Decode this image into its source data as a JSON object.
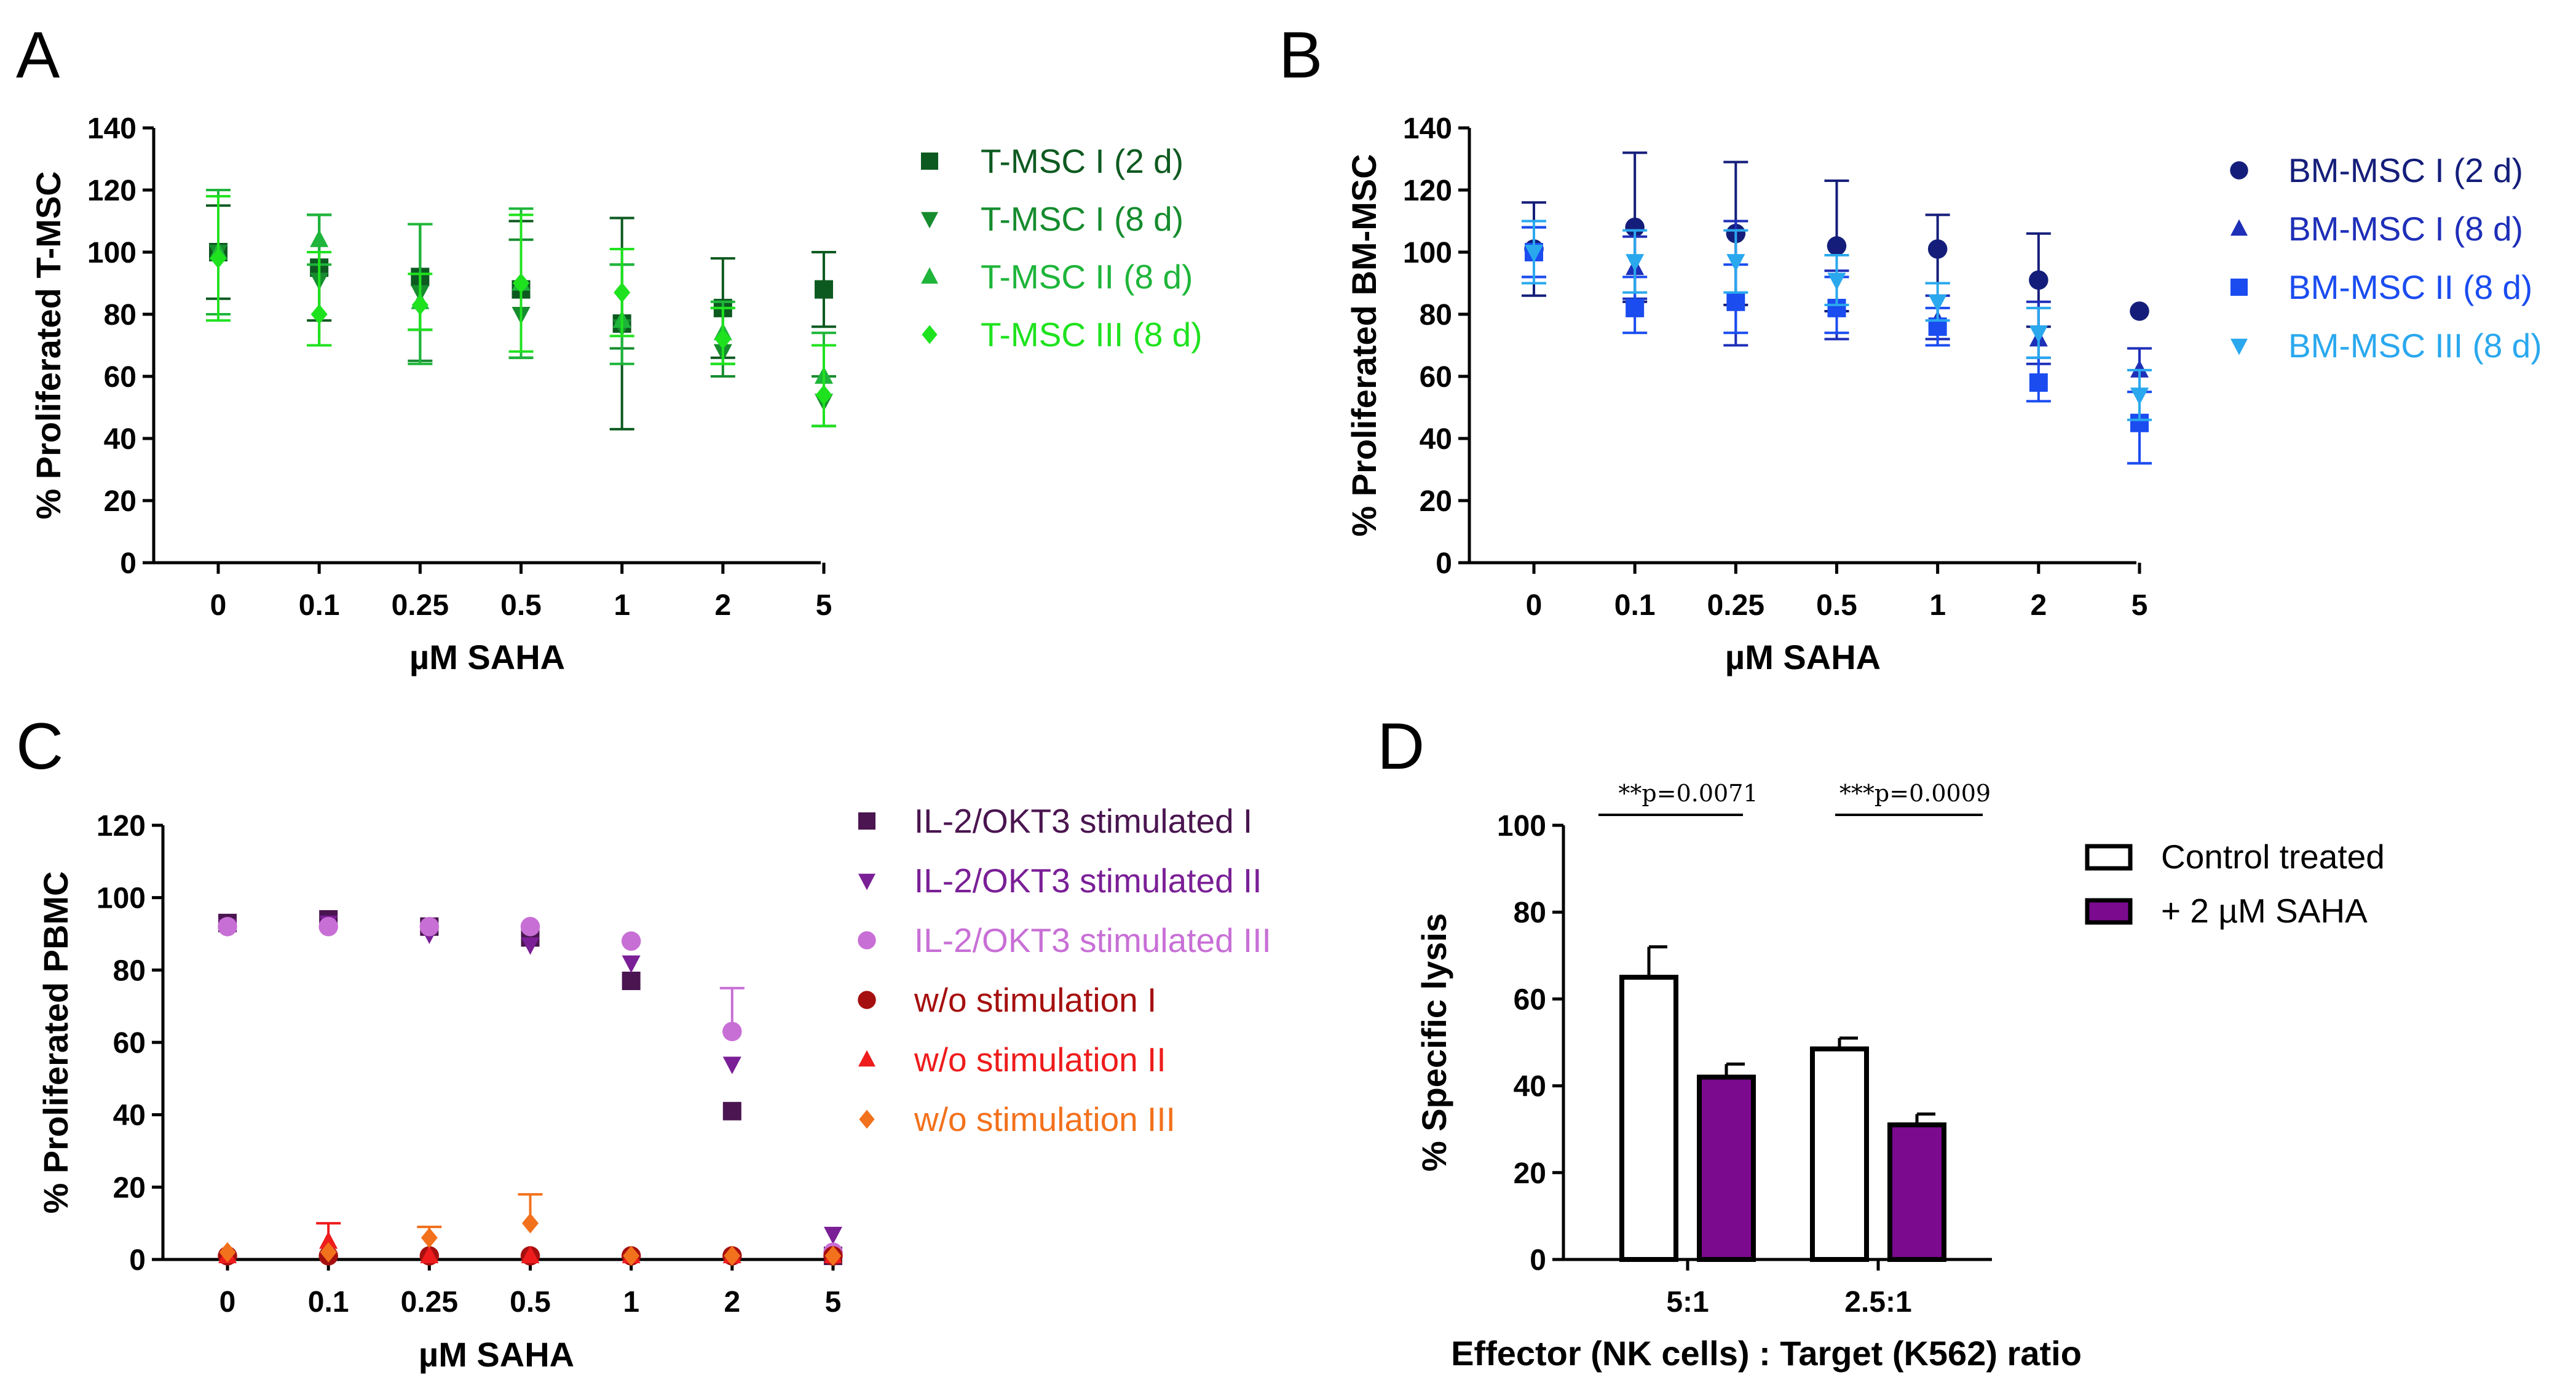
{
  "chart_data": [
    {
      "panel": "A",
      "type": "scatter",
      "xlabel": "µM SAHA",
      "ylabel": "% Proliferated T-MSC",
      "categories": [
        "0",
        "0.1",
        "0.25",
        "0.5",
        "1",
        "2",
        "5"
      ],
      "ylim": [
        0,
        140
      ],
      "yticks": [
        "0",
        "20",
        "40",
        "60",
        "80",
        "100",
        "120",
        "140"
      ],
      "legend_position": "right",
      "series": [
        {
          "name": "T-MSC I (2 d)",
          "marker": "square",
          "color": "#0d5a20",
          "values": [
            100,
            95,
            92,
            88,
            77,
            82,
            88
          ],
          "err_up": [
            15,
            17,
            17,
            22,
            34,
            16,
            12
          ],
          "err_down": [
            15,
            17,
            17,
            22,
            34,
            16,
            12
          ]
        },
        {
          "name": "T-MSC I (8 d)",
          "marker": "triangle-down",
          "color": "#168c2e",
          "values": [
            100,
            91,
            87,
            80,
            76,
            68,
            52
          ],
          "err_up": [
            20,
            21,
            22,
            24,
            20,
            14,
            8
          ],
          "err_down": [
            20,
            21,
            22,
            14,
            7,
            8,
            8
          ]
        },
        {
          "name": "T-MSC II (8 d)",
          "marker": "triangle-up",
          "color": "#1eb53a",
          "values": [
            100,
            104,
            84,
            90,
            78,
            74,
            60
          ],
          "err_up": [
            20,
            8,
            25,
            24,
            18,
            10,
            14
          ],
          "err_down": [
            20,
            8,
            20,
            24,
            14,
            10,
            16
          ]
        },
        {
          "name": "T-MSC III (8 d)",
          "marker": "diamond",
          "color": "#1fe21f",
          "values": [
            98,
            80,
            83,
            90,
            87,
            72,
            54
          ],
          "err_up": [
            20,
            20,
            10,
            22,
            14,
            10,
            16
          ],
          "err_down": [
            20,
            10,
            8,
            22,
            14,
            8,
            10
          ]
        }
      ]
    },
    {
      "panel": "B",
      "type": "scatter",
      "xlabel": "µM SAHA",
      "ylabel": "% Proliferated BM-MSC",
      "categories": [
        "0",
        "0.1",
        "0.25",
        "0.5",
        "1",
        "2",
        "5"
      ],
      "ylim": [
        0,
        140
      ],
      "yticks": [
        "0",
        "20",
        "40",
        "60",
        "80",
        "100",
        "120",
        "140"
      ],
      "legend_position": "right",
      "series": [
        {
          "name": "BM-MSC I (2 d)",
          "marker": "circle",
          "color": "#141e7a",
          "values": [
            101,
            108,
            106,
            102,
            101,
            91,
            81
          ],
          "err_up": [
            15,
            24,
            23,
            21,
            11,
            15,
            0
          ],
          "err_down": [
            15,
            24,
            23,
            21,
            11,
            15,
            0
          ]
        },
        {
          "name": "BM-MSC I (8 d)",
          "marker": "triangle-up",
          "color": "#1e2fb8",
          "values": [
            100,
            95,
            85,
            82,
            78,
            72,
            62
          ],
          "err_up": [
            8,
            10,
            25,
            12,
            8,
            12,
            7
          ],
          "err_down": [
            8,
            10,
            15,
            10,
            6,
            8,
            30
          ]
        },
        {
          "name": "BM-MSC II (8 d)",
          "marker": "square",
          "color": "#1a4cf0",
          "values": [
            100,
            82,
            84,
            82,
            76,
            58,
            45
          ],
          "err_up": [
            8,
            10,
            12,
            10,
            6,
            8,
            10
          ],
          "err_down": [
            8,
            8,
            10,
            8,
            6,
            6,
            13
          ]
        },
        {
          "name": "BM-MSC III (8 d)",
          "marker": "triangle-down",
          "color": "#2aa8ee",
          "values": [
            100,
            97,
            97,
            91,
            84,
            74,
            54
          ],
          "err_up": [
            10,
            10,
            10,
            8,
            6,
            8,
            8
          ],
          "err_down": [
            10,
            10,
            10,
            8,
            6,
            8,
            8
          ]
        }
      ]
    },
    {
      "panel": "C",
      "type": "scatter",
      "xlabel": "µM SAHA",
      "ylabel": "% Proliferated PBMC",
      "categories": [
        "0",
        "0.1",
        "0.25",
        "0.5",
        "1",
        "2",
        "5"
      ],
      "ylim": [
        0,
        120
      ],
      "yticks": [
        "0",
        "20",
        "40",
        "60",
        "80",
        "100",
        "120"
      ],
      "legend_position": "right",
      "series": [
        {
          "name": "IL-2/OKT3 stimulated I",
          "marker": "square",
          "color": "#4a1550",
          "values": [
            93,
            94,
            92,
            89,
            77,
            41,
            1
          ],
          "err_up": [
            0,
            0,
            0,
            0,
            0,
            0,
            0
          ],
          "err_down": [
            0,
            0,
            0,
            0,
            0,
            0,
            0
          ]
        },
        {
          "name": "IL-2/OKT3 stimulated II",
          "marker": "triangle-down",
          "color": "#7a1f96",
          "values": [
            92,
            93,
            90,
            87,
            82,
            54,
            7
          ],
          "err_up": [
            0,
            0,
            0,
            0,
            0,
            0,
            0
          ],
          "err_down": [
            0,
            0,
            0,
            0,
            0,
            0,
            0
          ]
        },
        {
          "name": "IL-2/OKT3 stimulated III",
          "marker": "circle",
          "color": "#c86fd6",
          "values": [
            92,
            92,
            92,
            92,
            88,
            63,
            2
          ],
          "err_up": [
            0,
            0,
            0,
            0,
            0,
            12,
            0
          ],
          "err_down": [
            0,
            0,
            0,
            0,
            0,
            0,
            0
          ]
        },
        {
          "name": "w/o stimulation I",
          "marker": "circle",
          "color": "#a60f0f",
          "values": [
            1,
            1,
            1,
            1,
            1,
            1,
            1
          ],
          "err_up": [
            0,
            0,
            0,
            0,
            0,
            0,
            0
          ],
          "err_down": [
            0,
            0,
            0,
            0,
            0,
            0,
            0
          ]
        },
        {
          "name": "w/o stimulation II",
          "marker": "triangle-up",
          "color": "#ee1c1c",
          "values": [
            1,
            5,
            1,
            1,
            1,
            1,
            1
          ],
          "err_up": [
            0,
            5,
            0,
            0,
            0,
            0,
            0
          ],
          "err_down": [
            0,
            0,
            0,
            0,
            0,
            0,
            0
          ]
        },
        {
          "name": "w/o stimulation III",
          "marker": "diamond",
          "color": "#f2711c",
          "values": [
            2,
            2,
            6,
            10,
            1,
            1,
            1
          ],
          "err_up": [
            0,
            0,
            3,
            8,
            0,
            0,
            0
          ],
          "err_down": [
            0,
            0,
            0,
            0,
            0,
            0,
            0
          ]
        }
      ]
    },
    {
      "panel": "D",
      "type": "bar",
      "xlabel": "Effector (NK cells) : Target (K562) ratio",
      "ylabel": "% Specific lysis",
      "categories": [
        "5:1",
        "2.5:1"
      ],
      "ylim": [
        0,
        100
      ],
      "yticks": [
        "0",
        "20",
        "40",
        "60",
        "80",
        "100"
      ],
      "legend_position": "top-right",
      "series": [
        {
          "name": "Control treated",
          "fill": "#ffffff",
          "values": [
            65,
            48.5
          ],
          "err_up": [
            7,
            2.5
          ]
        },
        {
          "name": "+ 2 µM SAHA",
          "fill": "#7b0a8f",
          "values": [
            42,
            31
          ],
          "err_up": [
            3,
            2.5
          ]
        }
      ],
      "annotations": [
        {
          "text": "**p=0.0071",
          "category": "5:1"
        },
        {
          "text": "***p=0.0009",
          "category": "2.5:1"
        }
      ]
    }
  ]
}
